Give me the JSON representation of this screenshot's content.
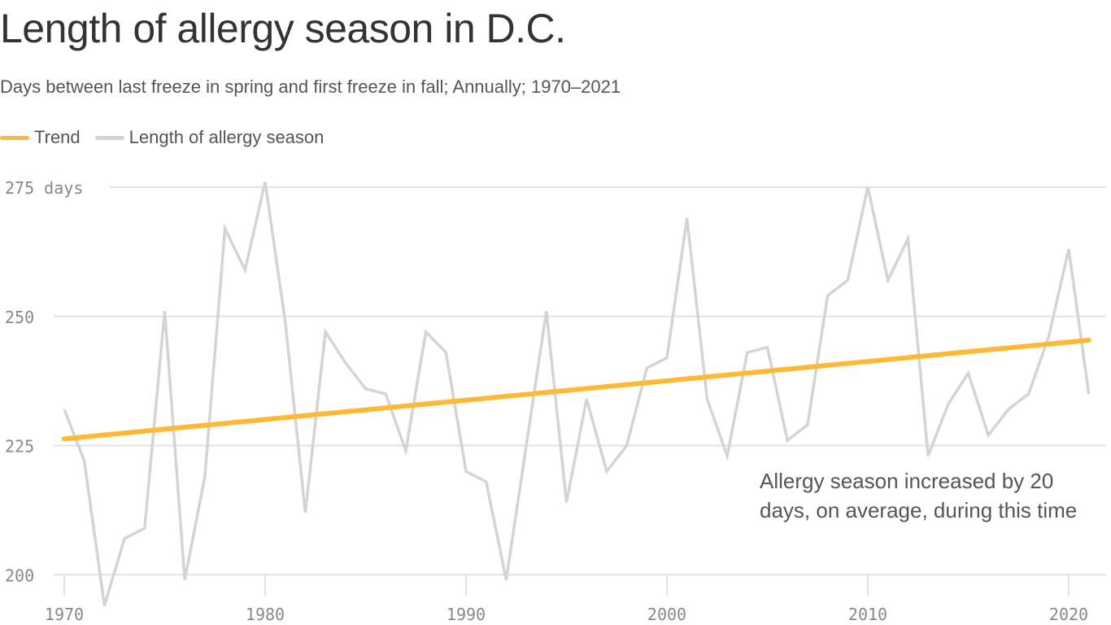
{
  "header": {
    "title": "Length of allergy season in D.C.",
    "subtitle": "Days between last freeze in spring and first freeze in fall; Annually; 1970–2021"
  },
  "colors": {
    "trend": "#ffb936",
    "series": "#d4d4d4",
    "grid": "#e2e2e2"
  },
  "chart_data": {
    "type": "line",
    "title": "Length of allergy season in D.C.",
    "subtitle": "Days between last freeze in spring and first freeze in fall; Annually; 1970–2021",
    "xlabel": "",
    "ylabel": "days",
    "xlim": [
      1970,
      2021
    ],
    "ylim": [
      195,
      277
    ],
    "yticks": [
      200,
      225,
      250,
      275
    ],
    "ytick_labels": [
      "200",
      "225",
      "250",
      "275 days"
    ],
    "xticks": [
      1970,
      1980,
      1990,
      2000,
      2010,
      2020
    ],
    "xtick_labels": [
      "1970",
      "1980",
      "1990",
      "2000",
      "2010",
      "2020"
    ],
    "grid": true,
    "legend_placement": "top-left",
    "legend": [
      "Trend",
      "Length of allergy season"
    ],
    "x": [
      1970,
      1971,
      1972,
      1973,
      1974,
      1975,
      1976,
      1977,
      1978,
      1979,
      1980,
      1981,
      1982,
      1983,
      1984,
      1985,
      1986,
      1987,
      1988,
      1989,
      1990,
      1991,
      1992,
      1993,
      1994,
      1995,
      1996,
      1997,
      1998,
      1999,
      2000,
      2001,
      2002,
      2003,
      2004,
      2005,
      2006,
      2007,
      2008,
      2009,
      2010,
      2011,
      2012,
      2013,
      2014,
      2015,
      2016,
      2017,
      2018,
      2019,
      2020,
      2021
    ],
    "series": [
      {
        "name": "Length of allergy season",
        "values": [
          232,
          222,
          194,
          207,
          209,
          251,
          199,
          219,
          267,
          259,
          276,
          249,
          212,
          247,
          241,
          236,
          235,
          224,
          247,
          243,
          220,
          218,
          199,
          225,
          251,
          214,
          234,
          220,
          225,
          240,
          242,
          269,
          234,
          223,
          243,
          244,
          226,
          229,
          254,
          257,
          275,
          257,
          265,
          223,
          233,
          239,
          227,
          232,
          235,
          246,
          263,
          235
        ]
      },
      {
        "name": "Trend",
        "x": [
          1970,
          2021
        ],
        "values": [
          226.3,
          245.4
        ]
      }
    ],
    "annotation": "Allergy season increased by 20 days, on average, during this time"
  }
}
